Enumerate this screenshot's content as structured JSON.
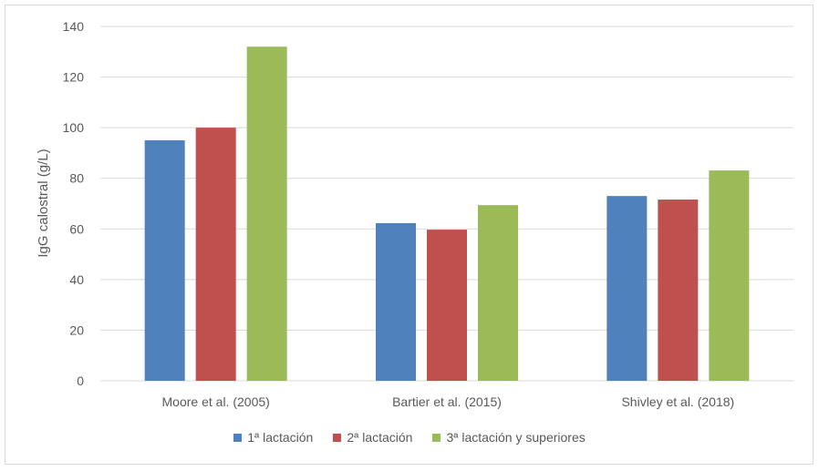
{
  "chart_data": {
    "type": "bar",
    "title": "",
    "xlabel": "",
    "ylabel": "IgG calostral (g/L)",
    "ylim": [
      0,
      140
    ],
    "yticks": [
      0,
      20,
      40,
      60,
      80,
      100,
      120,
      140
    ],
    "grid": true,
    "legend_position": "bottom",
    "categories": [
      "Moore et al. (2005)",
      "Bartier et al. (2015)",
      "Shivley et al. (2018)"
    ],
    "series": [
      {
        "name": "1ª lactación",
        "color": "#4f81bd",
        "values": [
          95,
          62.3,
          73
        ]
      },
      {
        "name": "2ª lactación",
        "color": "#c0504d",
        "values": [
          100,
          59.7,
          71.6
        ]
      },
      {
        "name": "3ª lactación y superiores",
        "color": "#9bbb59",
        "values": [
          132,
          69.4,
          83.1
        ]
      }
    ]
  }
}
